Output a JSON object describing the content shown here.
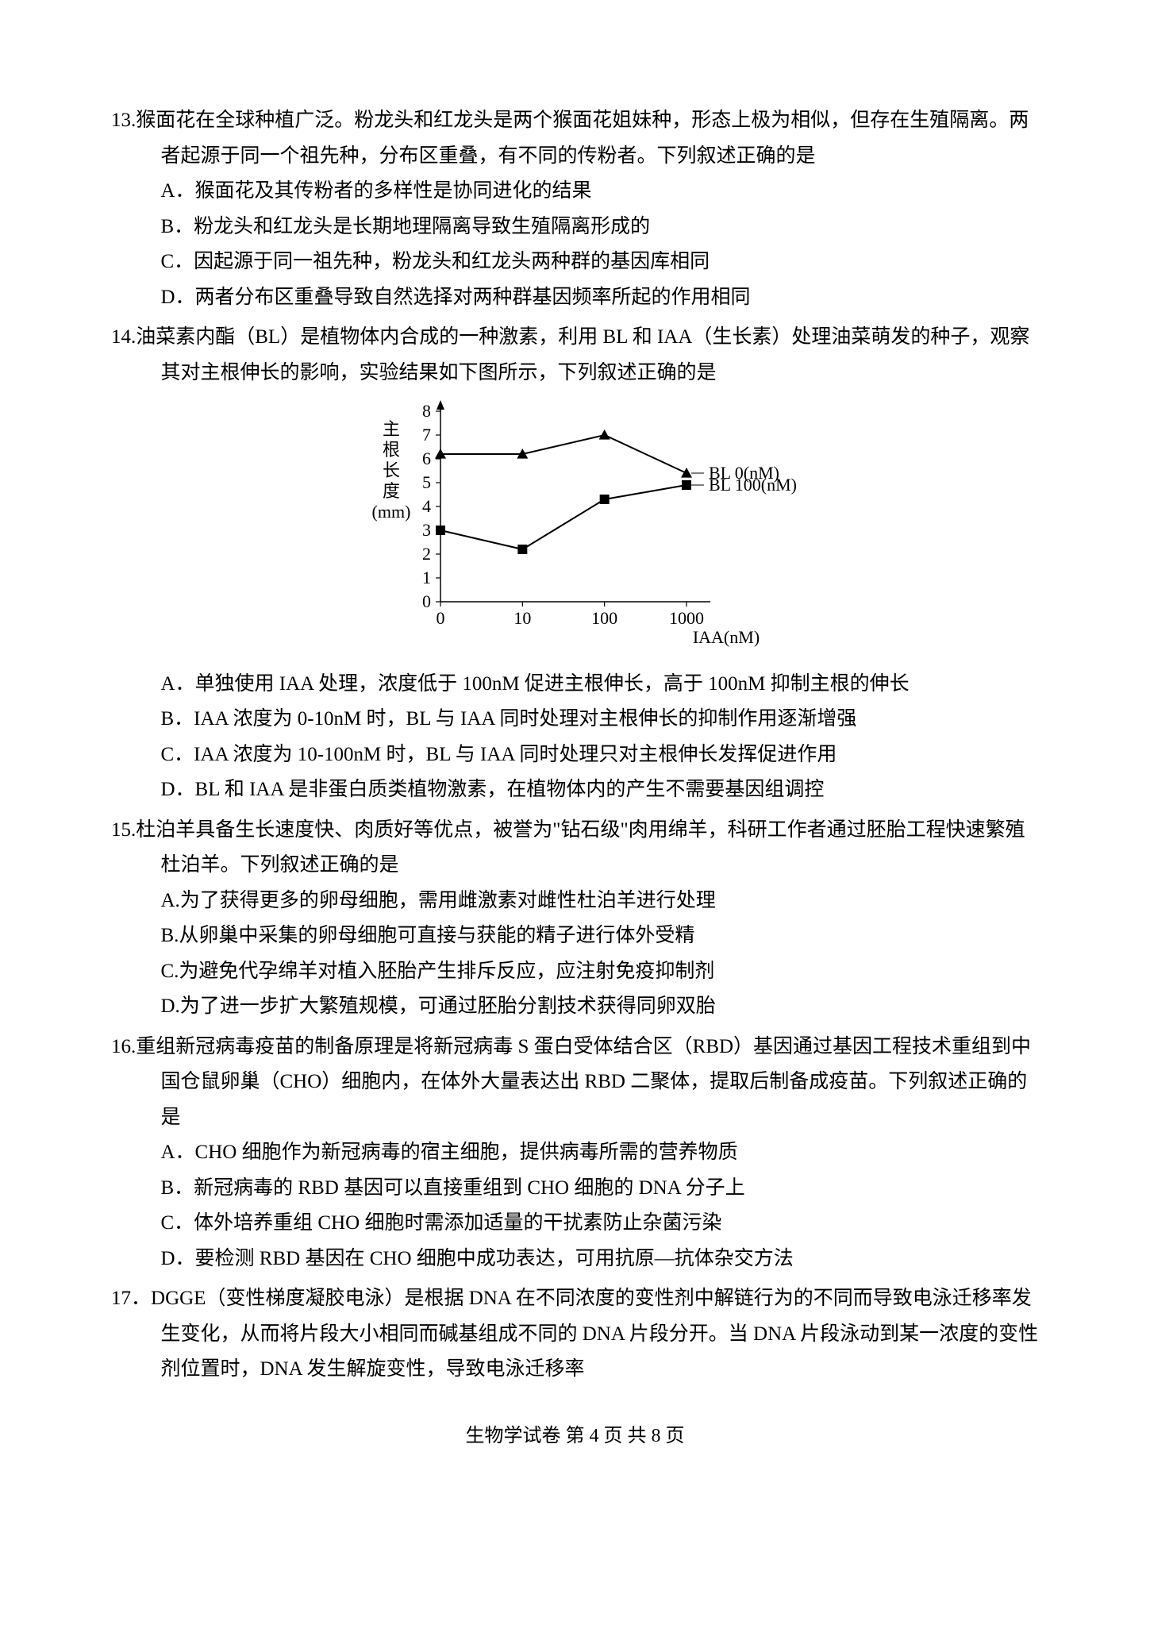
{
  "q13": {
    "num": "13.",
    "stem": "猴面花在全球种植广泛。粉龙头和红龙头是两个猴面花姐妹种，形态上极为相似，但存在生殖隔离。两者起源于同一个祖先种，分布区重叠，有不同的传粉者。下列叙述正确的是",
    "opts": {
      "A": "A．猴面花及其传粉者的多样性是协同进化的结果",
      "B": "B．粉龙头和红龙头是长期地理隔离导致生殖隔离形成的",
      "C": "C．因起源于同一祖先种，粉龙头和红龙头两种群的基因库相同",
      "D": "D．两者分布区重叠导致自然选择对两种群基因频率所起的作用相同"
    }
  },
  "q14": {
    "num": "14.",
    "stem": "油菜素内酯（BL）是植物体内合成的一种激素，利用 BL 和 IAA（生长素）处理油菜萌发的种子，观察其对主根伸长的影响，实验结果如下图所示，下列叙述正确的是",
    "chart": {
      "type": "line",
      "x_labels": [
        "0",
        "10",
        "100",
        "1000"
      ],
      "x_axis_label": "IAA(nM)",
      "y_ticks": [
        0,
        1,
        2,
        3,
        4,
        5,
        6,
        7,
        8
      ],
      "y_label": "主根长度 (mm)",
      "y_label_chars": [
        "主",
        "根",
        "长",
        "度",
        "(mm)"
      ],
      "ylim": [
        0,
        8
      ],
      "series": [
        {
          "name": "BL 0(nM)",
          "marker": "triangle",
          "values": [
            6.2,
            6.2,
            7.0,
            5.4
          ],
          "color": "#000000"
        },
        {
          "name": "BL 100(nM)",
          "marker": "square",
          "values": [
            3.0,
            2.2,
            4.3,
            4.9
          ],
          "color": "#000000"
        }
      ],
      "line_width": 2,
      "background_color": "#ffffff",
      "font_size": 22
    },
    "opts": {
      "A": "A．单独使用 IAA 处理，浓度低于 100nM 促进主根伸长，高于 100nM 抑制主根的伸长",
      "B": "B．IAA 浓度为 0-10nM 时，BL 与 IAA 同时处理对主根伸长的抑制作用逐渐增强",
      "C": "C．IAA 浓度为 10-100nM 时，BL 与 IAA 同时处理只对主根伸长发挥促进作用",
      "D": "D．BL 和 IAA 是非蛋白质类植物激素，在植物体内的产生不需要基因组调控"
    }
  },
  "q15": {
    "num": "15.",
    "stem": "杜泊羊具备生长速度快、肉质好等优点，被誉为\"钻石级\"肉用绵羊，科研工作者通过胚胎工程快速繁殖杜泊羊。下列叙述正确的是",
    "opts": {
      "A": "A.为了获得更多的卵母细胞，需用雌激素对雌性杜泊羊进行处理",
      "B": "B.从卵巢中采集的卵母细胞可直接与获能的精子进行体外受精",
      "C": "C.为避免代孕绵羊对植入胚胎产生排斥反应，应注射免疫抑制剂",
      "D": "D.为了进一步扩大繁殖规模，可通过胚胎分割技术获得同卵双胎"
    }
  },
  "q16": {
    "num": "16.",
    "stem": "重组新冠病毒疫苗的制备原理是将新冠病毒 S 蛋白受体结合区（RBD）基因通过基因工程技术重组到中国仓鼠卵巢（CHO）细胞内，在体外大量表达出 RBD 二聚体，提取后制备成疫苗。下列叙述正确的是",
    "opts": {
      "A": "A．CHO 细胞作为新冠病毒的宿主细胞，提供病毒所需的营养物质",
      "B": "B．新冠病毒的 RBD 基因可以直接重组到 CHO 细胞的 DNA 分子上",
      "C": "C．体外培养重组 CHO 细胞时需添加适量的干扰素防止杂菌污染",
      "D": "D．要检测 RBD 基因在 CHO 细胞中成功表达，可用抗原—抗体杂交方法"
    }
  },
  "q17": {
    "num": "17．",
    "stem": "DGGE（变性梯度凝胶电泳）是根据 DNA 在不同浓度的变性剂中解链行为的不同而导致电泳迁移率发生变化，从而将片段大小相同而碱基组成不同的 DNA 片段分开。当 DNA 片段泳动到某一浓度的变性剂位置时，DNA 发生解旋变性，导致电泳迁移率"
  },
  "footer": "生物学试卷 第 4 页 共 8 页"
}
